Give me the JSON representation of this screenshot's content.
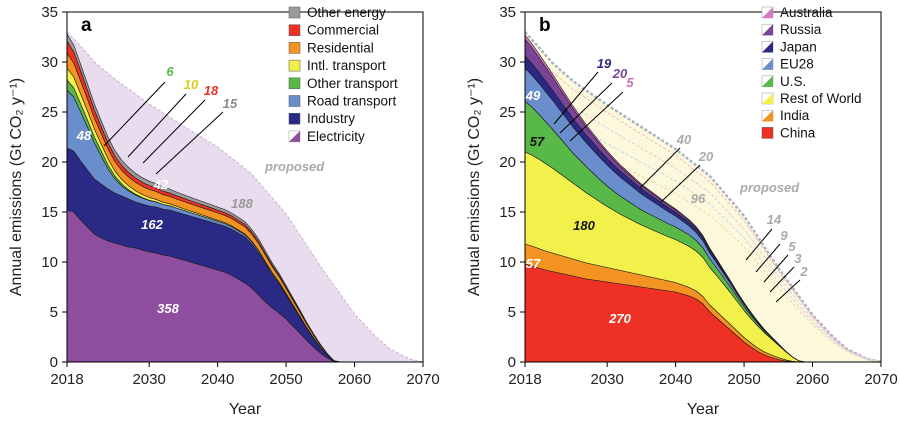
{
  "chart_data": [
    {
      "id": "a",
      "type": "area",
      "panel_label": "a",
      "xlabel": "Year",
      "ylabel": "Annual emissions (Gt CO₂ y⁻¹)",
      "xlim": [
        2018,
        2070
      ],
      "ylim": [
        0,
        35
      ],
      "xticks": [
        2018,
        2030,
        2040,
        2050,
        2060,
        2070
      ],
      "yticks": [
        0,
        5,
        10,
        15,
        20,
        25,
        30,
        35
      ],
      "x": [
        2018,
        2019,
        2020,
        2021,
        2022,
        2023,
        2024,
        2025,
        2026,
        2027,
        2028,
        2029,
        2030,
        2031,
        2032,
        2033,
        2034,
        2035,
        2036,
        2037,
        2038,
        2039,
        2040,
        2041,
        2042,
        2043,
        2044,
        2045,
        2046,
        2047,
        2048,
        2049,
        2050,
        2051,
        2052,
        2053,
        2054,
        2055,
        2056,
        2057,
        2058
      ],
      "series": [
        {
          "name": "Electricity",
          "color": "#8e4d9e",
          "total": "358",
          "values": [
            15.2,
            15.0,
            14.2,
            13.5,
            12.8,
            12.4,
            12.1,
            11.9,
            11.7,
            11.5,
            11.4,
            11.2,
            11.0,
            10.9,
            10.7,
            10.6,
            10.4,
            10.2,
            10.0,
            9.8,
            9.6,
            9.4,
            9.2,
            9.0,
            8.7,
            8.3,
            7.9,
            7.4,
            6.7,
            6.0,
            5.4,
            4.9,
            4.3,
            3.6,
            2.9,
            2.2,
            1.5,
            0.9,
            0.4,
            0.05,
            0
          ]
        },
        {
          "name": "Industry",
          "color": "#2a2a86",
          "total": "162",
          "values": [
            6.2,
            6.1,
            5.9,
            5.7,
            5.5,
            5.4,
            5.2,
            5.0,
            4.9,
            4.8,
            4.6,
            4.6,
            4.6,
            4.6,
            4.6,
            4.6,
            4.6,
            4.6,
            4.6,
            4.6,
            4.6,
            4.6,
            4.6,
            4.6,
            4.6,
            4.6,
            4.6,
            4.4,
            4.2,
            3.8,
            3.3,
            2.9,
            2.4,
            2.0,
            1.6,
            1.2,
            0.9,
            0.6,
            0.3,
            0.05,
            0
          ]
        },
        {
          "name": "Road transport",
          "color": "#6a8dcc",
          "total": "48",
          "values": [
            5.8,
            5.4,
            4.9,
            4.3,
            3.6,
            2.8,
            2.0,
            1.4,
            1.0,
            0.8,
            0.7,
            0.6,
            0.55,
            0.5,
            0.45,
            0.42,
            0.4,
            0.38,
            0.36,
            0.34,
            0.32,
            0.3,
            0.28,
            0.26,
            0.25,
            0.24,
            0.23,
            0.22,
            0.2,
            0.18,
            0.16,
            0.14,
            0.12,
            0.1,
            0.08,
            0.06,
            0.04,
            0.02,
            0.01,
            0,
            0
          ]
        },
        {
          "name": "Other transport",
          "color": "#58b848",
          "total": "6",
          "values": [
            1.0,
            0.9,
            0.8,
            0.7,
            0.6,
            0.5,
            0.4,
            0.3,
            0.2,
            0.12,
            0.08,
            0.05,
            0.03,
            0.02,
            0.01,
            0.01,
            0,
            0,
            0,
            0,
            0,
            0,
            0,
            0,
            0,
            0,
            0,
            0,
            0,
            0,
            0,
            0,
            0,
            0,
            0,
            0,
            0,
            0,
            0,
            0,
            0
          ]
        },
        {
          "name": "Intl. transport",
          "color": "#f2f04a",
          "total": "10",
          "values": [
            1.2,
            1.1,
            1.0,
            0.9,
            0.8,
            0.7,
            0.6,
            0.5,
            0.45,
            0.4,
            0.35,
            0.3,
            0.28,
            0.25,
            0.22,
            0.2,
            0.18,
            0.16,
            0.15,
            0.14,
            0.13,
            0.12,
            0.11,
            0.1,
            0.09,
            0.08,
            0.07,
            0.06,
            0.06,
            0.05,
            0.05,
            0.04,
            0.04,
            0.03,
            0.03,
            0.02,
            0.02,
            0.01,
            0.01,
            0,
            0
          ]
        },
        {
          "name": "Residential",
          "color": "#f29322",
          "total": "42",
          "values": [
            1.5,
            1.4,
            1.3,
            1.2,
            1.1,
            1.05,
            1.0,
            0.95,
            0.9,
            0.88,
            0.85,
            0.82,
            0.8,
            0.78,
            0.76,
            0.74,
            0.72,
            0.72,
            0.72,
            0.72,
            0.72,
            0.72,
            0.72,
            0.72,
            0.72,
            0.72,
            0.72,
            0.7,
            0.68,
            0.64,
            0.6,
            0.55,
            0.5,
            0.45,
            0.4,
            0.33,
            0.26,
            0.18,
            0.1,
            0.02,
            0
          ]
        },
        {
          "name": "Commercial",
          "color": "#ee3124",
          "total": "18",
          "values": [
            1.2,
            1.1,
            1.0,
            0.9,
            0.8,
            0.7,
            0.6,
            0.55,
            0.5,
            0.45,
            0.42,
            0.4,
            0.38,
            0.36,
            0.35,
            0.34,
            0.33,
            0.32,
            0.31,
            0.3,
            0.3,
            0.29,
            0.28,
            0.27,
            0.26,
            0.25,
            0.24,
            0.22,
            0.2,
            0.18,
            0.16,
            0.14,
            0.12,
            0.1,
            0.08,
            0.06,
            0.04,
            0.02,
            0.01,
            0,
            0
          ]
        },
        {
          "name": "Other energy",
          "color": "#9b9b9b",
          "total": "15",
          "values": [
            0.7,
            0.68,
            0.65,
            0.62,
            0.6,
            0.58,
            0.56,
            0.54,
            0.52,
            0.5,
            0.48,
            0.46,
            0.44,
            0.42,
            0.4,
            0.38,
            0.37,
            0.36,
            0.35,
            0.34,
            0.33,
            0.32,
            0.31,
            0.3,
            0.29,
            0.28,
            0.27,
            0.26,
            0.25,
            0.23,
            0.21,
            0.19,
            0.17,
            0.15,
            0.13,
            0.11,
            0.09,
            0.06,
            0.03,
            0.01,
            0
          ]
        }
      ],
      "proposed": {
        "label": "proposed",
        "total": "188",
        "color": "#e8dcee",
        "x": [
          2018,
          2020,
          2022,
          2025,
          2030,
          2035,
          2040,
          2045,
          2050,
          2055,
          2060,
          2063,
          2065,
          2068,
          2070
        ],
        "upper": [
          33.0,
          31.6,
          30.0,
          28.3,
          25.8,
          23.6,
          21.5,
          18.8,
          14.8,
          9.6,
          4.8,
          2.6,
          1.4,
          0.3,
          0
        ]
      },
      "legend": [
        "Other energy",
        "Commercial",
        "Residential",
        "Intl. transport",
        "Other transport",
        "Road transport",
        "Industry",
        "Electricity"
      ],
      "annotations": [
        {
          "text": "6",
          "color": "#58b848"
        },
        {
          "text": "10",
          "color": "#d9cc1a"
        },
        {
          "text": "18",
          "color": "#ee3124"
        },
        {
          "text": "15",
          "color": "#8a8a8a"
        },
        {
          "text": "42",
          "color": "#ffffff"
        },
        {
          "text": "188",
          "color": "#999999"
        }
      ]
    },
    {
      "id": "b",
      "type": "area",
      "panel_label": "b",
      "xlabel": "Year",
      "ylabel": "Annual emissions (Gt CO₂ y⁻¹)",
      "xlim": [
        2018,
        2070
      ],
      "ylim": [
        0,
        35
      ],
      "xticks": [
        2018,
        2030,
        2040,
        2050,
        2060,
        2070
      ],
      "yticks": [
        0,
        5,
        10,
        15,
        20,
        25,
        30,
        35
      ],
      "x": [
        2018,
        2019,
        2020,
        2021,
        2022,
        2023,
        2024,
        2025,
        2026,
        2027,
        2028,
        2029,
        2030,
        2031,
        2032,
        2033,
        2034,
        2035,
        2036,
        2037,
        2038,
        2039,
        2040,
        2041,
        2042,
        2043,
        2044,
        2045,
        2046,
        2047,
        2048,
        2049,
        2050,
        2051,
        2052,
        2053,
        2054,
        2055,
        2056,
        2057,
        2058,
        2059
      ],
      "series": [
        {
          "name": "China",
          "color": "#ee3124",
          "total": "270",
          "values": [
            9.8,
            9.6,
            9.4,
            9.2,
            9.05,
            8.9,
            8.75,
            8.6,
            8.45,
            8.3,
            8.2,
            8.1,
            8.0,
            7.9,
            7.8,
            7.7,
            7.6,
            7.5,
            7.4,
            7.3,
            7.2,
            7.1,
            7.0,
            6.8,
            6.6,
            6.3,
            5.8,
            5.0,
            4.4,
            3.8,
            3.2,
            2.6,
            2.0,
            1.5,
            1.05,
            0.7,
            0.45,
            0.25,
            0.1,
            0.03,
            0,
            0
          ]
        },
        {
          "name": "India",
          "color": "#f29322",
          "total": "57",
          "values": [
            2.0,
            2.0,
            1.95,
            1.9,
            1.85,
            1.8,
            1.75,
            1.7,
            1.65,
            1.6,
            1.55,
            1.5,
            1.45,
            1.4,
            1.35,
            1.3,
            1.25,
            1.2,
            1.15,
            1.1,
            1.05,
            1.0,
            0.95,
            0.9,
            0.85,
            0.8,
            0.75,
            0.7,
            0.65,
            0.6,
            0.55,
            0.5,
            0.45,
            0.4,
            0.35,
            0.3,
            0.25,
            0.2,
            0.12,
            0.05,
            0.01,
            0
          ]
        },
        {
          "name": "Rest of World",
          "color": "#f2f04a",
          "total": "180",
          "values": [
            9.2,
            9.1,
            8.95,
            8.75,
            8.5,
            8.2,
            7.9,
            7.6,
            7.3,
            7.0,
            6.7,
            6.4,
            6.1,
            5.85,
            5.6,
            5.4,
            5.2,
            5.0,
            4.85,
            4.7,
            4.55,
            4.4,
            4.3,
            4.2,
            4.1,
            4.0,
            3.9,
            3.75,
            3.6,
            3.4,
            3.2,
            2.95,
            2.7,
            2.45,
            2.2,
            1.9,
            1.6,
            1.25,
            0.85,
            0.45,
            0.1,
            0
          ]
        },
        {
          "name": "U.S.",
          "color": "#58b848",
          "total": "57",
          "values": [
            5.1,
            4.8,
            4.5,
            4.2,
            3.9,
            3.6,
            3.3,
            3.0,
            2.8,
            2.6,
            2.4,
            2.2,
            2.05,
            1.9,
            1.8,
            1.7,
            1.6,
            1.5,
            1.45,
            1.4,
            1.35,
            1.3,
            1.25,
            1.2,
            1.15,
            1.05,
            0.95,
            0.85,
            0.75,
            0.65,
            0.55,
            0.45,
            0.38,
            0.3,
            0.23,
            0.17,
            0.12,
            0.08,
            0.04,
            0.01,
            0,
            0
          ]
        },
        {
          "name": "EU28",
          "color": "#6a8dcc",
          "total": "49",
          "values": [
            3.3,
            3.2,
            3.1,
            3.0,
            2.9,
            2.8,
            2.7,
            2.6,
            2.5,
            2.4,
            2.3,
            2.2,
            2.1,
            2.0,
            1.9,
            1.8,
            1.7,
            1.6,
            1.5,
            1.4,
            1.3,
            1.2,
            1.1,
            1.0,
            0.9,
            0.8,
            0.7,
            0.6,
            0.5,
            0.42,
            0.35,
            0.28,
            0.22,
            0.17,
            0.12,
            0.08,
            0.05,
            0.03,
            0.01,
            0,
            0,
            0
          ]
        },
        {
          "name": "Japan",
          "color": "#2a2a86",
          "total": "19",
          "values": [
            1.2,
            1.15,
            1.1,
            1.05,
            1.0,
            0.95,
            0.9,
            0.85,
            0.8,
            0.75,
            0.72,
            0.69,
            0.66,
            0.63,
            0.6,
            0.57,
            0.54,
            0.51,
            0.48,
            0.45,
            0.42,
            0.4,
            0.38,
            0.36,
            0.34,
            0.32,
            0.3,
            0.27,
            0.24,
            0.21,
            0.18,
            0.15,
            0.12,
            0.1,
            0.08,
            0.06,
            0.04,
            0.02,
            0.01,
            0,
            0,
            0
          ]
        },
        {
          "name": "Russia",
          "color": "#7b4596",
          "total": "20",
          "values": [
            1.7,
            1.6,
            1.5,
            1.4,
            1.3,
            1.2,
            1.1,
            1.0,
            0.9,
            0.8,
            0.72,
            0.65,
            0.58,
            0.52,
            0.46,
            0.42,
            0.38,
            0.35,
            0.32,
            0.3,
            0.28,
            0.26,
            0.24,
            0.22,
            0.2,
            0.18,
            0.16,
            0.14,
            0.12,
            0.1,
            0.08,
            0.06,
            0.05,
            0.04,
            0.03,
            0.02,
            0.01,
            0,
            0,
            0,
            0,
            0
          ]
        },
        {
          "name": "Australia",
          "color": "#d77bc0",
          "total": "5",
          "values": [
            0.4,
            0.38,
            0.36,
            0.34,
            0.32,
            0.3,
            0.28,
            0.26,
            0.24,
            0.22,
            0.2,
            0.19,
            0.18,
            0.17,
            0.16,
            0.15,
            0.14,
            0.13,
            0.12,
            0.11,
            0.1,
            0.1,
            0.09,
            0.09,
            0.08,
            0.08,
            0.07,
            0.06,
            0.05,
            0.04,
            0.03,
            0.02,
            0.02,
            0.01,
            0.01,
            0,
            0,
            0,
            0,
            0,
            0,
            0
          ]
        }
      ],
      "proposed": {
        "label": "proposed",
        "color": "#fbf8dc",
        "x": [
          2018,
          2020,
          2022,
          2025,
          2030,
          2035,
          2040,
          2045,
          2050,
          2055,
          2060,
          2063,
          2065,
          2068,
          2070
        ],
        "upper": [
          33.0,
          31.5,
          29.9,
          28.1,
          25.7,
          23.5,
          21.3,
          18.6,
          14.6,
          9.4,
          4.7,
          2.5,
          1.3,
          0.3,
          0
        ]
      },
      "legend": [
        "Australia",
        "Russia",
        "Japan",
        "EU28",
        "U.S.",
        "Rest of World",
        "India",
        "China"
      ],
      "annotations": [
        {
          "text": "19",
          "color": "#2a2a86"
        },
        {
          "text": "20",
          "color": "#7b4596"
        },
        {
          "text": "5",
          "color": "#c774ad"
        },
        {
          "text": "40",
          "color": "#aaaaaa"
        },
        {
          "text": "20",
          "color": "#aaaaaa"
        },
        {
          "text": "96",
          "color": "#aaaaaa"
        },
        {
          "text": "14",
          "color": "#aaaaaa"
        },
        {
          "text": "9",
          "color": "#aaaaaa"
        },
        {
          "text": "5",
          "color": "#aaaaaa"
        },
        {
          "text": "3",
          "color": "#aaaaaa"
        },
        {
          "text": "2",
          "color": "#aaaaaa"
        }
      ]
    }
  ]
}
